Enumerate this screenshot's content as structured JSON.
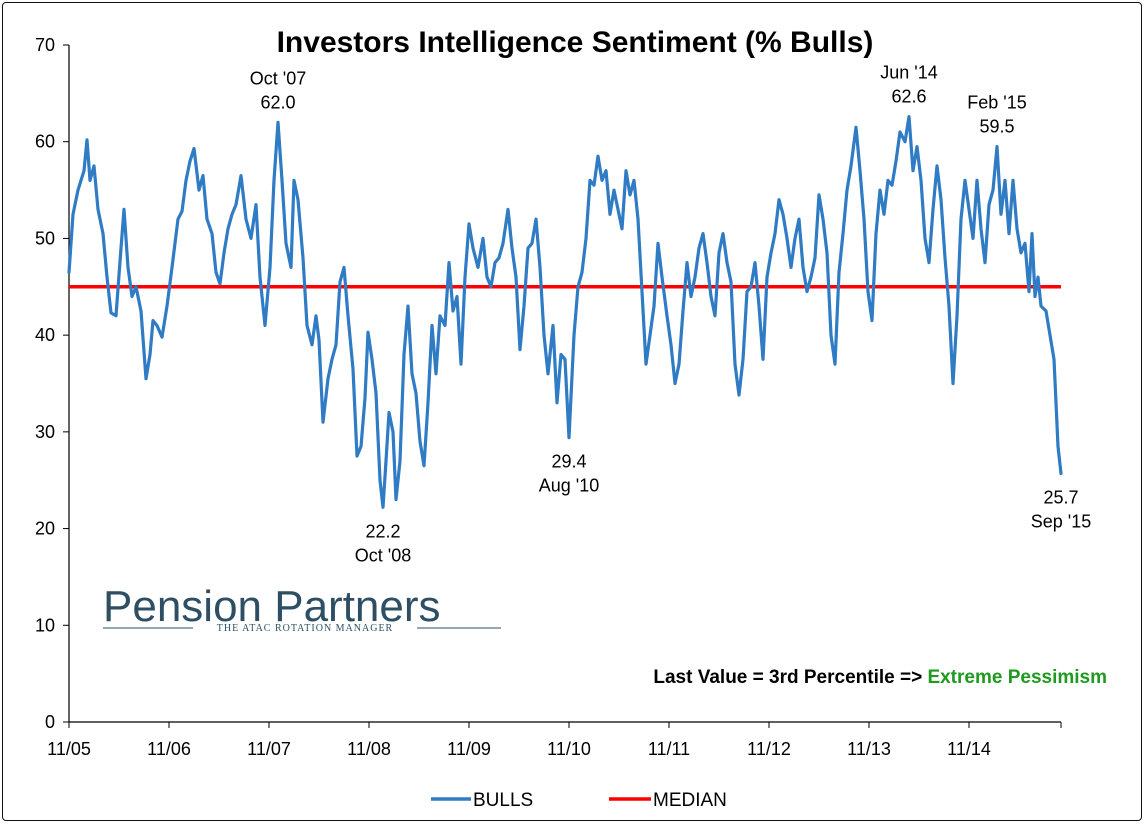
{
  "chart_data": {
    "type": "line",
    "title": "Investors Intelligence Sentiment (% Bulls)",
    "xlabel": "",
    "ylabel": "",
    "ylim": [
      0,
      70
    ],
    "y_ticks": [
      "0",
      "10",
      "20",
      "30",
      "40",
      "50",
      "60",
      "70"
    ],
    "x_tick_labels": [
      "11/05",
      "11/06",
      "11/07",
      "11/08",
      "11/09",
      "11/10",
      "11/11",
      "11/12",
      "11/13",
      "11/14"
    ],
    "x_range": [
      2005.83,
      2015.75
    ],
    "grid": false,
    "legend_position": "bottom",
    "series": [
      {
        "name": "BULLS",
        "color": "#2f7bc4",
        "points": [
          [
            2005.83,
            46.5
          ],
          [
            2005.87,
            52.5
          ],
          [
            2005.92,
            55.0
          ],
          [
            2005.98,
            57.0
          ],
          [
            2006.01,
            60.2
          ],
          [
            2006.04,
            56.0
          ],
          [
            2006.08,
            57.5
          ],
          [
            2006.12,
            53.0
          ],
          [
            2006.17,
            50.5
          ],
          [
            2006.21,
            46.0
          ],
          [
            2006.25,
            42.3
          ],
          [
            2006.3,
            42.0
          ],
          [
            2006.35,
            49.0
          ],
          [
            2006.38,
            53.0
          ],
          [
            2006.42,
            47.0
          ],
          [
            2006.46,
            44.0
          ],
          [
            2006.5,
            45.0
          ],
          [
            2006.55,
            42.5
          ],
          [
            2006.6,
            35.5
          ],
          [
            2006.64,
            38.0
          ],
          [
            2006.67,
            41.5
          ],
          [
            2006.71,
            41.0
          ],
          [
            2006.76,
            39.8
          ],
          [
            2006.81,
            43.0
          ],
          [
            2006.86,
            47.0
          ],
          [
            2006.92,
            52.0
          ],
          [
            2006.96,
            52.8
          ],
          [
            2007.0,
            56.0
          ],
          [
            2007.04,
            58.0
          ],
          [
            2007.08,
            59.3
          ],
          [
            2007.13,
            55.0
          ],
          [
            2007.17,
            56.5
          ],
          [
            2007.21,
            52.0
          ],
          [
            2007.26,
            50.5
          ],
          [
            2007.3,
            46.5
          ],
          [
            2007.34,
            45.3
          ],
          [
            2007.38,
            48.5
          ],
          [
            2007.42,
            51.0
          ],
          [
            2007.46,
            52.5
          ],
          [
            2007.5,
            53.5
          ],
          [
            2007.55,
            56.5
          ],
          [
            2007.6,
            52.0
          ],
          [
            2007.65,
            50.0
          ],
          [
            2007.7,
            53.5
          ],
          [
            2007.74,
            46.0
          ],
          [
            2007.79,
            41.0
          ],
          [
            2007.84,
            47.0
          ],
          [
            2007.88,
            56.0
          ],
          [
            2007.92,
            62.0
          ],
          [
            2007.96,
            56.0
          ],
          [
            2008.0,
            49.5
          ],
          [
            2008.05,
            47.0
          ],
          [
            2008.08,
            56.0
          ],
          [
            2008.12,
            54.0
          ],
          [
            2008.17,
            48.0
          ],
          [
            2008.21,
            41.0
          ],
          [
            2008.26,
            39.0
          ],
          [
            2008.3,
            42.0
          ],
          [
            2008.33,
            39.5
          ],
          [
            2008.37,
            31.0
          ],
          [
            2008.42,
            35.5
          ],
          [
            2008.46,
            37.5
          ],
          [
            2008.5,
            39.0
          ],
          [
            2008.54,
            45.5
          ],
          [
            2008.58,
            47.0
          ],
          [
            2008.62,
            42.0
          ],
          [
            2008.67,
            36.5
          ],
          [
            2008.71,
            27.5
          ],
          [
            2008.75,
            28.5
          ],
          [
            2008.79,
            33.5
          ],
          [
            2008.82,
            40.3
          ],
          [
            2008.86,
            37.5
          ],
          [
            2008.9,
            34.0
          ],
          [
            2008.94,
            25.0
          ],
          [
            2008.97,
            22.2
          ],
          [
            2009.0,
            27.0
          ],
          [
            2009.03,
            32.0
          ],
          [
            2009.07,
            30.0
          ],
          [
            2009.1,
            23.0
          ],
          [
            2009.14,
            27.0
          ],
          [
            2009.18,
            38.0
          ],
          [
            2009.22,
            43.0
          ],
          [
            2009.26,
            36.0
          ],
          [
            2009.3,
            34.0
          ],
          [
            2009.34,
            29.0
          ],
          [
            2009.38,
            26.5
          ],
          [
            2009.42,
            33.0
          ],
          [
            2009.46,
            41.0
          ],
          [
            2009.5,
            36.0
          ],
          [
            2009.54,
            42.0
          ],
          [
            2009.59,
            41.0
          ],
          [
            2009.63,
            47.5
          ],
          [
            2009.67,
            42.5
          ],
          [
            2009.71,
            44.0
          ],
          [
            2009.75,
            37.0
          ],
          [
            2009.79,
            46.0
          ],
          [
            2009.83,
            51.5
          ],
          [
            2009.87,
            49.0
          ],
          [
            2009.92,
            47.0
          ],
          [
            2009.97,
            50.0
          ],
          [
            2010.01,
            46.0
          ],
          [
            2010.05,
            45.0
          ],
          [
            2010.09,
            47.5
          ],
          [
            2010.13,
            48.0
          ],
          [
            2010.17,
            49.5
          ],
          [
            2010.22,
            53.0
          ],
          [
            2010.26,
            49.0
          ],
          [
            2010.3,
            46.0
          ],
          [
            2010.34,
            38.5
          ],
          [
            2010.38,
            43.0
          ],
          [
            2010.42,
            49.0
          ],
          [
            2010.46,
            49.5
          ],
          [
            2010.5,
            52.0
          ],
          [
            2010.54,
            47.0
          ],
          [
            2010.58,
            40.0
          ],
          [
            2010.62,
            36.0
          ],
          [
            2010.67,
            41.0
          ],
          [
            2010.71,
            33.0
          ],
          [
            2010.75,
            38.0
          ],
          [
            2010.79,
            37.5
          ],
          [
            2010.83,
            29.4
          ],
          [
            2010.88,
            40.0
          ],
          [
            2010.92,
            45.0
          ],
          [
            2010.96,
            46.5
          ],
          [
            2011.0,
            50.0
          ],
          [
            2011.04,
            56.0
          ],
          [
            2011.08,
            55.5
          ],
          [
            2011.12,
            58.5
          ],
          [
            2011.16,
            56.0
          ],
          [
            2011.2,
            57.0
          ],
          [
            2011.24,
            52.5
          ],
          [
            2011.28,
            55.0
          ],
          [
            2011.32,
            53.0
          ],
          [
            2011.36,
            51.0
          ],
          [
            2011.4,
            57.0
          ],
          [
            2011.44,
            54.5
          ],
          [
            2011.48,
            56.0
          ],
          [
            2011.52,
            52.0
          ],
          [
            2011.56,
            44.5
          ],
          [
            2011.6,
            37.0
          ],
          [
            2011.64,
            40.0
          ],
          [
            2011.68,
            43.0
          ],
          [
            2011.72,
            49.5
          ],
          [
            2011.76,
            46.0
          ],
          [
            2011.81,
            42.0
          ],
          [
            2011.85,
            39.0
          ],
          [
            2011.89,
            35.0
          ],
          [
            2011.93,
            37.0
          ],
          [
            2011.97,
            42.5
          ],
          [
            2012.01,
            47.5
          ],
          [
            2012.05,
            44.0
          ],
          [
            2012.09,
            46.0
          ],
          [
            2012.13,
            49.0
          ],
          [
            2012.17,
            50.5
          ],
          [
            2012.21,
            47.5
          ],
          [
            2012.25,
            44.0
          ],
          [
            2012.29,
            42.0
          ],
          [
            2012.33,
            48.5
          ],
          [
            2012.37,
            50.5
          ],
          [
            2012.41,
            47.5
          ],
          [
            2012.45,
            45.5
          ],
          [
            2012.49,
            37.0
          ],
          [
            2012.53,
            33.8
          ],
          [
            2012.57,
            37.5
          ],
          [
            2012.61,
            44.5
          ],
          [
            2012.65,
            45.0
          ],
          [
            2012.69,
            47.5
          ],
          [
            2012.73,
            43.0
          ],
          [
            2012.77,
            37.5
          ],
          [
            2012.81,
            46.0
          ],
          [
            2012.85,
            48.5
          ],
          [
            2012.89,
            50.5
          ],
          [
            2012.93,
            54.0
          ],
          [
            2012.97,
            52.5
          ],
          [
            2013.01,
            50.0
          ],
          [
            2013.05,
            47.0
          ],
          [
            2013.09,
            50.0
          ],
          [
            2013.13,
            52.0
          ],
          [
            2013.17,
            47.0
          ],
          [
            2013.21,
            44.5
          ],
          [
            2013.25,
            46.0
          ],
          [
            2013.29,
            48.0
          ],
          [
            2013.33,
            54.5
          ],
          [
            2013.37,
            52.0
          ],
          [
            2013.41,
            48.5
          ],
          [
            2013.45,
            40.0
          ],
          [
            2013.49,
            37.0
          ],
          [
            2013.53,
            46.5
          ],
          [
            2013.57,
            50.5
          ],
          [
            2013.61,
            55.0
          ],
          [
            2013.65,
            57.5
          ],
          [
            2013.7,
            61.5
          ],
          [
            2013.74,
            57.0
          ],
          [
            2013.78,
            52.0
          ],
          [
            2013.82,
            44.5
          ],
          [
            2013.86,
            41.5
          ],
          [
            2013.9,
            50.5
          ],
          [
            2013.94,
            55.0
          ],
          [
            2013.98,
            52.5
          ],
          [
            2014.02,
            56.0
          ],
          [
            2014.06,
            55.5
          ],
          [
            2014.1,
            58.0
          ],
          [
            2014.14,
            61.0
          ],
          [
            2014.19,
            60.0
          ],
          [
            2014.23,
            62.6
          ],
          [
            2014.27,
            57.0
          ],
          [
            2014.31,
            59.5
          ],
          [
            2014.35,
            56.0
          ],
          [
            2014.39,
            50.0
          ],
          [
            2014.43,
            47.5
          ],
          [
            2014.47,
            53.0
          ],
          [
            2014.51,
            57.5
          ],
          [
            2014.55,
            54.0
          ],
          [
            2014.59,
            48.0
          ],
          [
            2014.63,
            43.0
          ],
          [
            2014.67,
            35.0
          ],
          [
            2014.71,
            42.0
          ],
          [
            2014.75,
            52.0
          ],
          [
            2014.79,
            56.0
          ],
          [
            2014.83,
            53.0
          ],
          [
            2014.87,
            50.0
          ],
          [
            2014.91,
            56.0
          ],
          [
            2014.95,
            51.0
          ],
          [
            2014.99,
            47.5
          ],
          [
            2015.03,
            53.5
          ],
          [
            2015.07,
            55.0
          ],
          [
            2015.11,
            59.5
          ],
          [
            2015.15,
            52.5
          ],
          [
            2015.19,
            56.0
          ],
          [
            2015.23,
            50.5
          ],
          [
            2015.27,
            56.0
          ],
          [
            2015.31,
            51.0
          ],
          [
            2015.35,
            48.5
          ],
          [
            2015.39,
            49.5
          ],
          [
            2015.43,
            44.5
          ],
          [
            2015.46,
            50.5
          ],
          [
            2015.49,
            44.0
          ],
          [
            2015.52,
            46.0
          ],
          [
            2015.55,
            43.0
          ],
          [
            2015.6,
            42.5
          ],
          [
            2015.64,
            40.0
          ],
          [
            2015.68,
            37.5
          ],
          [
            2015.72,
            28.5
          ],
          [
            2015.75,
            25.7
          ]
        ]
      },
      {
        "name": "MEDIAN",
        "color": "#ff0000",
        "value": 45
      }
    ],
    "annotations": [
      {
        "x": 2007.92,
        "y": 62.0,
        "lines": [
          "Oct '07",
          "62.0"
        ],
        "position": "above"
      },
      {
        "x": 2008.97,
        "y": 22.2,
        "lines": [
          "22.2",
          "Oct '08"
        ],
        "position": "below"
      },
      {
        "x": 2010.83,
        "y": 29.4,
        "lines": [
          "29.4",
          "Aug '10"
        ],
        "position": "below"
      },
      {
        "x": 2014.23,
        "y": 62.6,
        "lines": [
          "Jun '14",
          "62.6"
        ],
        "position": "above"
      },
      {
        "x": 2015.11,
        "y": 59.5,
        "lines": [
          "Feb '15",
          "59.5"
        ],
        "position": "above"
      },
      {
        "x": 2015.75,
        "y": 25.7,
        "lines": [
          "25.7",
          "Sep '15"
        ],
        "position": "below"
      }
    ]
  },
  "note": {
    "prefix": "Last Value = 3rd Percentile => ",
    "emphasis": "Extreme Pessimism",
    "emphasis_color": "#1e9a1e"
  },
  "logo": {
    "wordmark": "Pension Partners",
    "tagline": "THE ATAC ROTATION MANAGER",
    "color": "#2e4f63"
  },
  "legend": {
    "items": [
      {
        "label": "BULLS",
        "color": "#2f7bc4"
      },
      {
        "label": "MEDIAN",
        "color": "#ff0000"
      }
    ]
  }
}
